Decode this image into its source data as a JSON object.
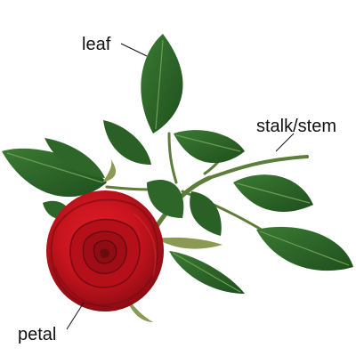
{
  "labels": {
    "leaf": "leaf",
    "stem": "stalk/stem",
    "petal": "petal"
  },
  "parts": {
    "leaf": "leaf-illustration",
    "stem": "stem-illustration",
    "petal": "rose-bloom-illustration"
  },
  "colors": {
    "background": "#ffffff",
    "leaf": "#2f6b2a",
    "leaf_dark": "#1e4a1c",
    "leaf_vein": "#6f9b55",
    "stem": "#5d7d3a",
    "petal": "#c8141e",
    "petal_dark": "#7a0a10",
    "sepal": "#8a9a52",
    "leader_line": "#111111",
    "text": "#111111"
  }
}
